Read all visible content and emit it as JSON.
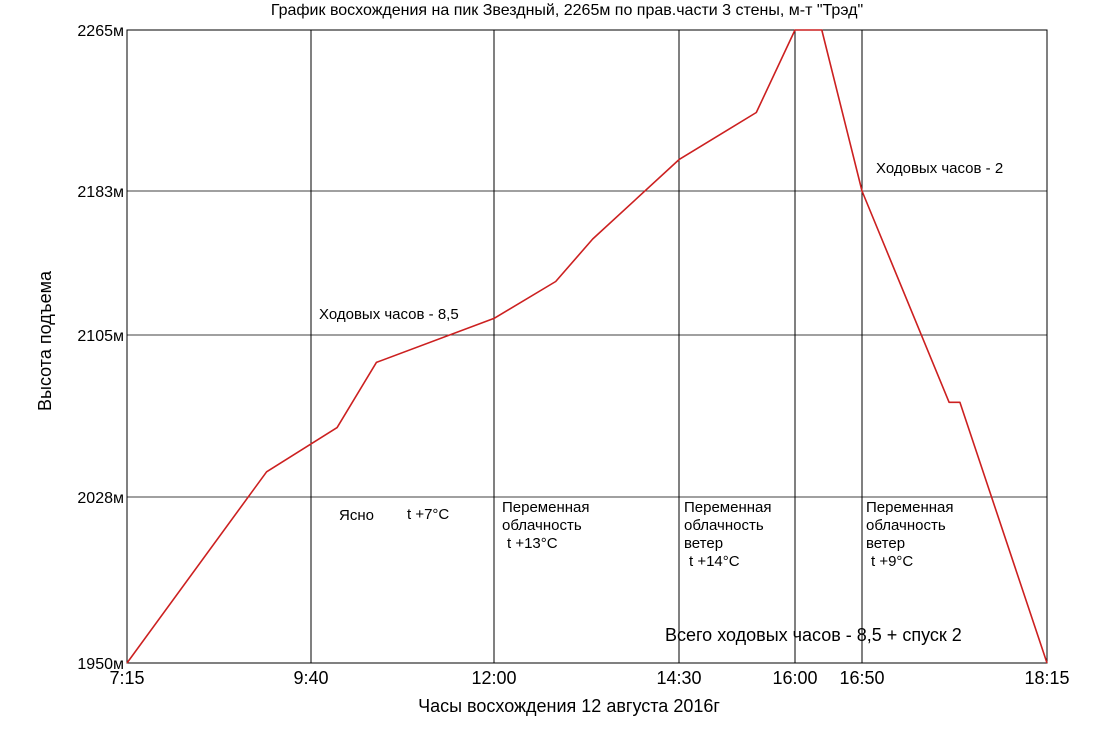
{
  "chart_data": {
    "type": "line",
    "title": "График восхождения на пик Звездный, 2265м  по прав.части 3 стены, м-т \"Трэд\"",
    "xlabel": "Часы восхождения 12 августа 2016г",
    "ylabel": "Высота подъема",
    "x_ticks": [
      {
        "label": "7:15",
        "time": "7:15"
      },
      {
        "label": "9:40",
        "time": "9:40"
      },
      {
        "label": "12:00",
        "time": "12:00"
      },
      {
        "label": "14:30",
        "time": "14:30"
      },
      {
        "label": "16:00",
        "time": "16:00"
      },
      {
        "label": "16:50",
        "time": "16:50"
      },
      {
        "label": "18:15",
        "time": "18:15"
      }
    ],
    "y_ticks": [
      {
        "label": "1950м",
        "value": 1950
      },
      {
        "label": "2028м",
        "value": 2028
      },
      {
        "label": "2105м",
        "value": 2105
      },
      {
        "label": "2183м",
        "value": 2183
      },
      {
        "label": "2265м",
        "value": 2265
      }
    ],
    "ylim": [
      1950,
      2265
    ],
    "grid": true,
    "line_color": "#cc2020",
    "series": [
      {
        "points": [
          {
            "t": "7:15",
            "y": 1950
          },
          {
            "t": "9:05",
            "y": 2040
          },
          {
            "t": "10:00",
            "y": 2061
          },
          {
            "t": "10:30",
            "y": 2092
          },
          {
            "t": "12:00",
            "y": 2114
          },
          {
            "t": "12:50",
            "y": 2134
          },
          {
            "t": "13:20",
            "y": 2157
          },
          {
            "t": "14:30",
            "y": 2199
          },
          {
            "t": "15:30",
            "y": 2223
          },
          {
            "t": "16:00",
            "y": 2265
          },
          {
            "t": "16:20",
            "y": 2265
          },
          {
            "t": "16:50",
            "y": 2183
          },
          {
            "t": "17:30",
            "y": 2073
          },
          {
            "t": "17:35",
            "y": 2073
          },
          {
            "t": "18:15",
            "y": 1950
          }
        ]
      }
    ],
    "annotations": [
      {
        "id": "walk-hours-ascent",
        "lines": [
          "Ходовых часов - 8,5"
        ]
      },
      {
        "id": "walk-hours-descent",
        "lines": [
          "Ходовых часов - 2"
        ]
      },
      {
        "id": "weather-1-clear",
        "lines": [
          "Ясно"
        ]
      },
      {
        "id": "weather-1-temp",
        "lines": [
          "t +7°C"
        ]
      },
      {
        "id": "weather-2",
        "lines": [
          "Переменная",
          "облачность",
          "t +13°C"
        ]
      },
      {
        "id": "weather-3",
        "lines": [
          "Переменная",
          "облачность",
          "ветер",
          "t +14°C"
        ]
      },
      {
        "id": "weather-4",
        "lines": [
          "Переменная",
          "облачность",
          "ветер",
          "t +9°C"
        ]
      },
      {
        "id": "total-hours",
        "lines": [
          "Всего ходовых часов - 8,5 + спуск 2"
        ]
      }
    ]
  }
}
